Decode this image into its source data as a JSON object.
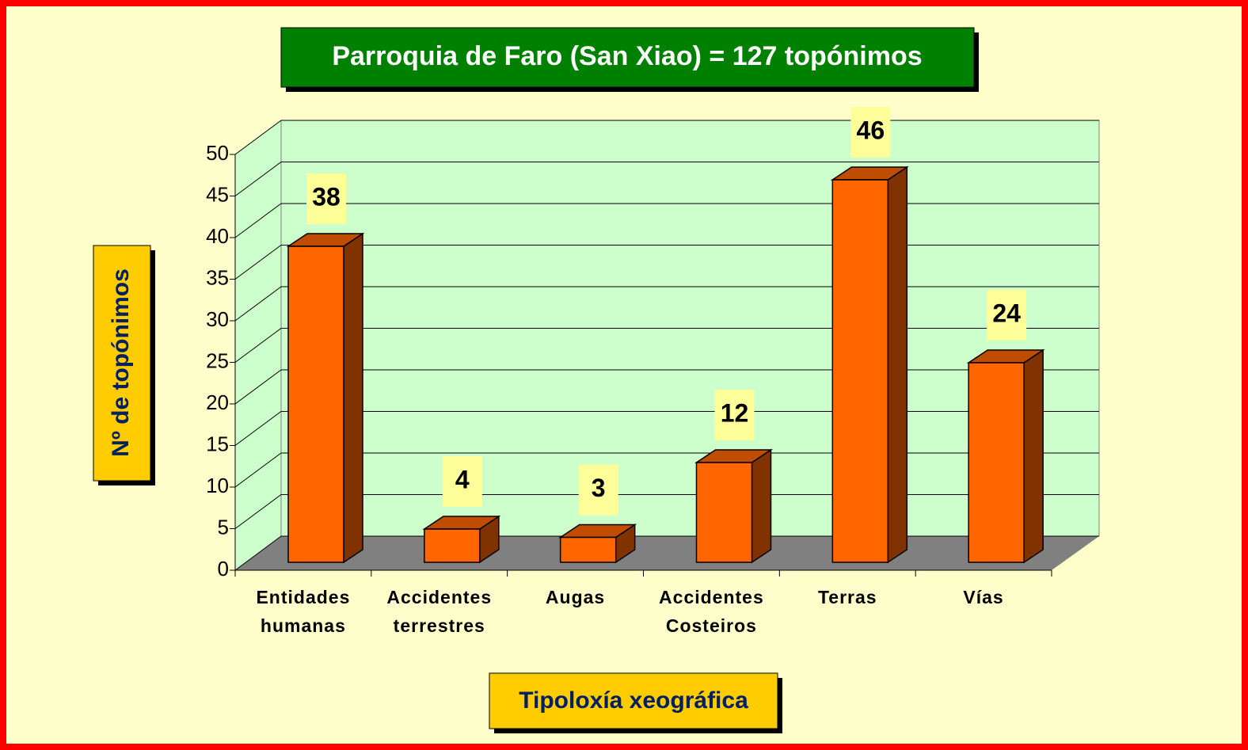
{
  "chart_data": {
    "type": "bar3d",
    "title": "Parroquia de Faro (San Xiao) = 127 topónimos",
    "y_label": "Nº de topónimos",
    "x_label": "Tipoloxía xeográfica",
    "categories": [
      "Entidades humanas",
      "Accidentes terrestres",
      "Augas",
      "Accidentes Costeiros",
      "Terras",
      "Vías"
    ],
    "values": [
      38,
      4,
      3,
      12,
      46,
      24
    ],
    "color": "#ff6600",
    "ylim": [
      0,
      50
    ],
    "yticks": [
      0,
      5,
      10,
      15,
      20,
      25,
      30,
      35,
      40,
      45,
      50
    ],
    "grid": true
  }
}
